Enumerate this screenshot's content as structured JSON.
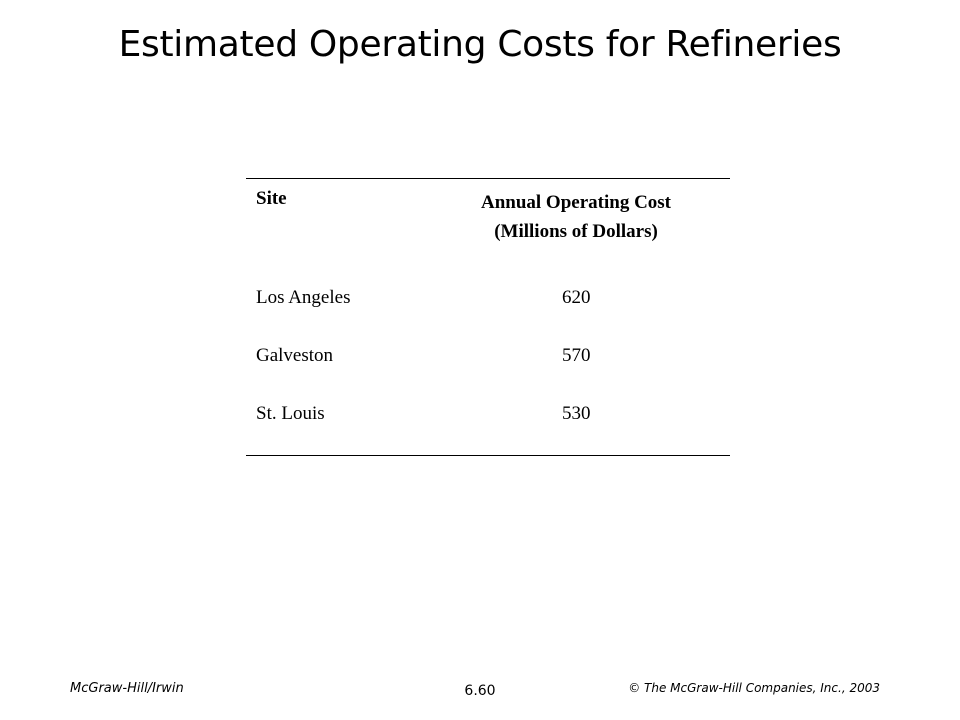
{
  "slide": {
    "title": "Estimated Operating Costs for Refineries"
  },
  "table": {
    "header": {
      "site": "Site",
      "cost_line1": "Annual Operating Cost",
      "cost_line2": "(Millions of Dollars)"
    },
    "rows": [
      {
        "site": "Los Angeles",
        "cost": "620"
      },
      {
        "site": "Galveston",
        "cost": "570"
      },
      {
        "site": "St. Louis",
        "cost": "530"
      }
    ]
  },
  "footer": {
    "left": "McGraw-Hill/Irwin",
    "center": "6.60",
    "right": "© The McGraw-Hill Companies, Inc., 2003"
  }
}
